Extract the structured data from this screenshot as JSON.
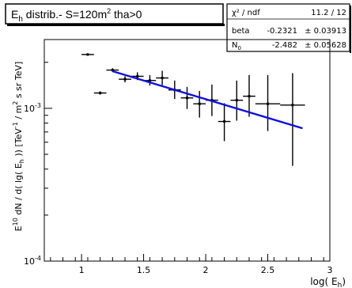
{
  "chart_data": {
    "type": "scatter",
    "title_main": "E",
    "title_sub": "h",
    "title_rest": " distrib.- S=120m",
    "title_sup": "2",
    "title_tail": " tha>0",
    "xlabel_main": "log( E",
    "xlabel_sub": "h",
    "xlabel_tail": ")",
    "ylabel": "E^{10} dN / d( lg( E_{h} ))  [TeV^{-1} / m^{2} s sr TeV]",
    "xlim": [
      0.7,
      3.0
    ],
    "ylim_log10": [
      -4,
      -2.55
    ],
    "y_log_scale": true,
    "x_ticks": [
      "1",
      "1.5",
      "2",
      "2.5",
      "3"
    ],
    "x_tick_values": [
      1,
      1.5,
      2,
      2.5,
      3
    ],
    "y_ticks": [
      {
        "base": "10",
        "exp": "-3",
        "value": 0.001
      },
      {
        "base": "10",
        "exp": "-4",
        "value": 0.0001
      }
    ],
    "points": [
      {
        "x": 1.05,
        "y": 0.00225,
        "xerr": 0.05,
        "ylo": 0.00221,
        "yhi": 0.00229
      },
      {
        "x": 1.15,
        "y": 0.00126,
        "xerr": 0.05,
        "ylo": 0.00123,
        "yhi": 0.00129
      },
      {
        "x": 1.25,
        "y": 0.00178,
        "xerr": 0.05,
        "ylo": 0.00173,
        "yhi": 0.00183
      },
      {
        "x": 1.35,
        "y": 0.00155,
        "xerr": 0.05,
        "ylo": 0.00148,
        "yhi": 0.00162
      },
      {
        "x": 1.45,
        "y": 0.00162,
        "xerr": 0.05,
        "ylo": 0.00153,
        "yhi": 0.00172
      },
      {
        "x": 1.55,
        "y": 0.00152,
        "xerr": 0.05,
        "ylo": 0.00141,
        "yhi": 0.00165
      },
      {
        "x": 1.65,
        "y": 0.00158,
        "xerr": 0.05,
        "ylo": 0.00142,
        "yhi": 0.00176
      },
      {
        "x": 1.75,
        "y": 0.00132,
        "xerr": 0.05,
        "ylo": 0.00115,
        "yhi": 0.00152
      },
      {
        "x": 1.85,
        "y": 0.00117,
        "xerr": 0.05,
        "ylo": 0.00099,
        "yhi": 0.00138
      },
      {
        "x": 1.95,
        "y": 0.00107,
        "xerr": 0.05,
        "ylo": 0.00087,
        "yhi": 0.0013
      },
      {
        "x": 2.05,
        "y": 0.00113,
        "xerr": 0.05,
        "ylo": 0.00089,
        "yhi": 0.00143
      },
      {
        "x": 2.15,
        "y": 0.00082,
        "xerr": 0.05,
        "ylo": 0.00061,
        "yhi": 0.00108
      },
      {
        "x": 2.25,
        "y": 0.00113,
        "xerr": 0.05,
        "ylo": 0.00083,
        "yhi": 0.00152
      },
      {
        "x": 2.35,
        "y": 0.0012,
        "xerr": 0.05,
        "ylo": 0.00088,
        "yhi": 0.00165
      },
      {
        "x": 2.5,
        "y": 0.00107,
        "xerr": 0.1,
        "ylo": 0.00071,
        "yhi": 0.00165
      },
      {
        "x": 2.7,
        "y": 0.00105,
        "xerr": 0.1,
        "ylo": 0.00042,
        "yhi": 0.0017
      }
    ],
    "fit": {
      "x": [
        1.25,
        2.78
      ],
      "y": [
        0.00175,
        0.00074
      ],
      "color": "#1010dd"
    },
    "stats": {
      "rows": [
        {
          "label": "χ² / ndf",
          "value": "11.2 / 12",
          "error": ""
        },
        {
          "label": "beta",
          "value": "-0.2321",
          "error": "± 0.03913"
        },
        {
          "label": "N",
          "label_sub": "0",
          "value": "-2.482",
          "error": "± 0.05628"
        }
      ]
    },
    "colors": {
      "points": "#000000",
      "fit": "#1010dd",
      "frame": "#000000"
    }
  }
}
